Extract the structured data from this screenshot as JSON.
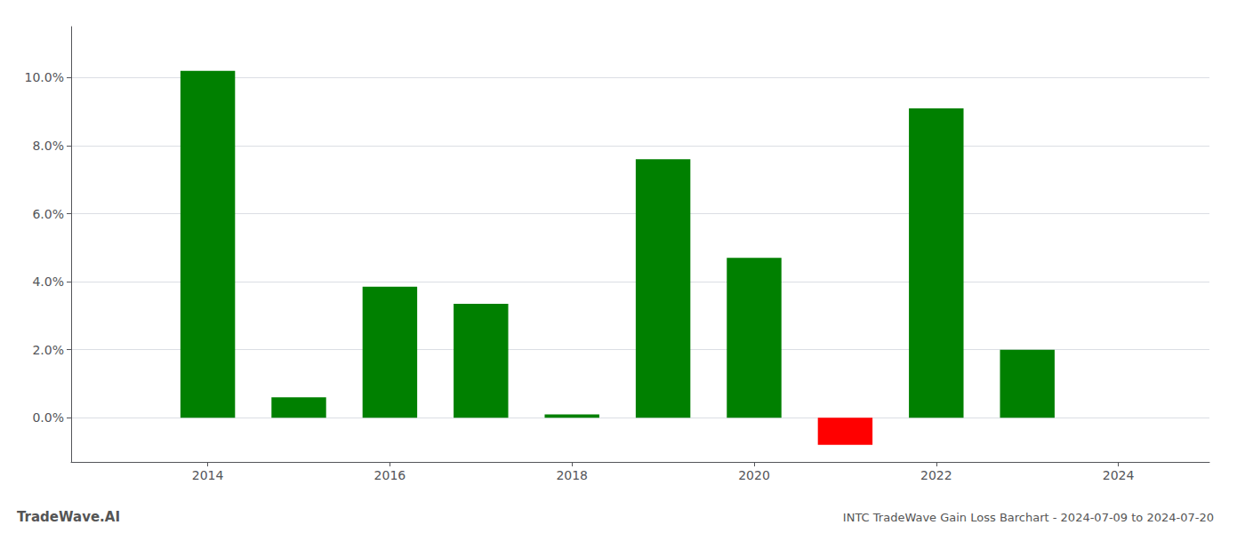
{
  "chart_data": {
    "type": "bar",
    "title": "INTC TradeWave Gain Loss Barchart - 2024-07-09 to 2024-07-20",
    "x": [
      2014,
      2015,
      2016,
      2017,
      2018,
      2019,
      2020,
      2021,
      2022,
      2023
    ],
    "values": [
      0.102,
      0.006,
      0.0385,
      0.0335,
      0.001,
      0.076,
      0.047,
      -0.008,
      0.091,
      0.02
    ],
    "colors": [
      "#008000",
      "#008000",
      "#008000",
      "#008000",
      "#008000",
      "#008000",
      "#008000",
      "#ff0000",
      "#008000",
      "#008000"
    ],
    "xlim": [
      2012.5,
      2025.0
    ],
    "xticks": [
      2014,
      2016,
      2018,
      2020,
      2022,
      2024
    ],
    "ylim": [
      -0.013,
      0.115
    ],
    "yticks": [
      {
        "value": 0.0,
        "label": "0.0%"
      },
      {
        "value": 0.02,
        "label": "2.0%"
      },
      {
        "value": 0.04,
        "label": "4.0%"
      },
      {
        "value": 0.06,
        "label": "6.0%"
      },
      {
        "value": 0.08,
        "label": "8.0%"
      },
      {
        "value": 0.1,
        "label": "10.0%"
      }
    ],
    "grid": true,
    "annotations": [
      {
        "text": "TradeWave.AI"
      }
    ]
  }
}
